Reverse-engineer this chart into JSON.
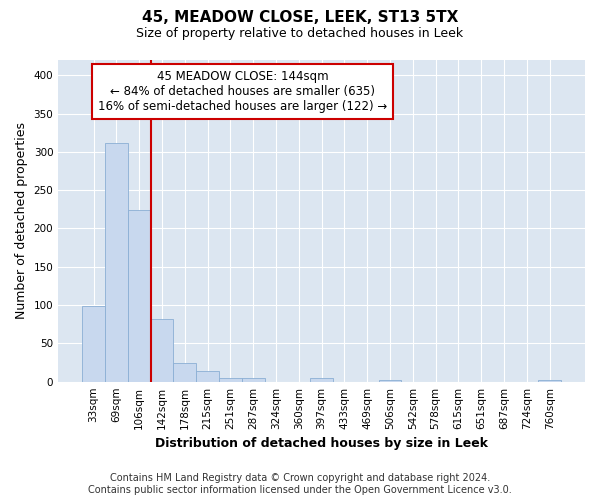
{
  "title": "45, MEADOW CLOSE, LEEK, ST13 5TX",
  "subtitle": "Size of property relative to detached houses in Leek",
  "xlabel": "Distribution of detached houses by size in Leek",
  "ylabel": "Number of detached properties",
  "categories": [
    "33sqm",
    "69sqm",
    "106sqm",
    "142sqm",
    "178sqm",
    "215sqm",
    "251sqm",
    "287sqm",
    "324sqm",
    "360sqm",
    "397sqm",
    "433sqm",
    "469sqm",
    "506sqm",
    "542sqm",
    "578sqm",
    "615sqm",
    "651sqm",
    "687sqm",
    "724sqm",
    "760sqm"
  ],
  "values": [
    99,
    312,
    224,
    82,
    25,
    14,
    5,
    5,
    0,
    0,
    5,
    0,
    0,
    2,
    0,
    0,
    0,
    0,
    0,
    0,
    2
  ],
  "bar_color": "#c8d8ee",
  "bar_edge_color": "#8bafd4",
  "background_color": "#dce6f1",
  "grid_color": "#ffffff",
  "vline_x_index": 3,
  "vline_color": "#cc0000",
  "annotation_text": "45 MEADOW CLOSE: 144sqm\n← 84% of detached houses are smaller (635)\n16% of semi-detached houses are larger (122) →",
  "annotation_box_color": "#ffffff",
  "annotation_box_edge_color": "#cc0000",
  "footer_line1": "Contains HM Land Registry data © Crown copyright and database right 2024.",
  "footer_line2": "Contains public sector information licensed under the Open Government Licence v3.0.",
  "ylim": [
    0,
    420
  ],
  "yticks": [
    0,
    50,
    100,
    150,
    200,
    250,
    300,
    350,
    400
  ],
  "title_fontsize": 11,
  "subtitle_fontsize": 9,
  "axis_label_fontsize": 9,
  "tick_fontsize": 7.5,
  "footer_fontsize": 7,
  "annotation_fontsize": 8.5
}
